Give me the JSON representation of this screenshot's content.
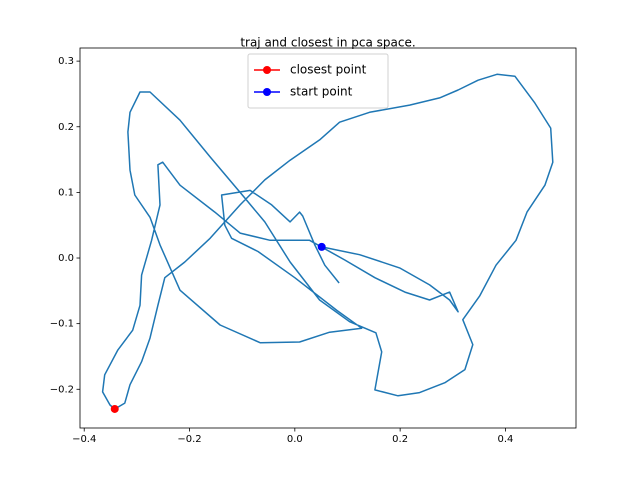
{
  "chart_data": {
    "type": "line",
    "title": "traj and closest in pca space.",
    "xlim": [
      -0.408,
      0.534
    ],
    "ylim": [
      -0.259,
      0.32
    ],
    "xticks": [
      {
        "value": -0.4,
        "label": "−0.4"
      },
      {
        "value": -0.2,
        "label": "−0.2"
      },
      {
        "value": 0,
        "label": "0.0"
      },
      0.2,
      0.4
    ],
    "yticks": [
      {
        "value": -0.2,
        "label": "−0.2"
      },
      {
        "value": -0.1,
        "label": "−0.1"
      },
      {
        "value": 0,
        "label": "0.0"
      },
      0.1,
      0.2,
      0.3
    ],
    "grid": false,
    "legend": "upper center",
    "series": [
      {
        "color": "#1f77b4",
        "x": [
          0.051,
          0.123,
          0.199,
          0.256,
          0.294,
          0.31,
          0.294,
          0.256,
          0.209,
          0.152,
          0.095,
          0.028,
          -0.047,
          -0.104,
          -0.152,
          -0.218,
          -0.251,
          -0.26,
          -0.256,
          -0.272,
          -0.291,
          -0.294,
          -0.308,
          -0.336,
          -0.361,
          -0.365,
          -0.351,
          -0.342,
          -0.323,
          -0.313,
          -0.291,
          -0.275,
          -0.26,
          -0.247,
          -0.209,
          -0.161,
          -0.104,
          -0.057,
          -0.009,
          0.047,
          0.085,
          0.142,
          0.218,
          0.275,
          0.31,
          0.348,
          0.384,
          0.418,
          0.456,
          0.486,
          0.49,
          0.475,
          0.441,
          0.42,
          0.382,
          0.351,
          0.319,
          0.338,
          0.323,
          0.285,
          0.237,
          0.196,
          0.152,
          0.165,
          0.154,
          0.104,
          0.047,
          -0.009,
          -0.057,
          -0.104,
          -0.161,
          -0.218,
          -0.275,
          -0.294,
          -0.313,
          -0.317,
          -0.313,
          -0.304,
          -0.275,
          -0.256,
          -0.218,
          -0.142,
          -0.066,
          0.009,
          0.066,
          0.127,
          0.08,
          0.0,
          -0.07,
          -0.12,
          -0.133,
          -0.139,
          -0.085,
          -0.044,
          -0.009,
          0.009,
          0.015,
          0.038,
          0.057,
          0.084
        ],
        "y": [
          0.017,
          0.005,
          -0.015,
          -0.041,
          -0.064,
          -0.082,
          -0.052,
          -0.064,
          -0.052,
          -0.03,
          -0.003,
          0.027,
          0.027,
          0.038,
          0.07,
          0.111,
          0.146,
          0.142,
          0.081,
          0.027,
          -0.026,
          -0.072,
          -0.11,
          -0.14,
          -0.178,
          -0.204,
          -0.224,
          -0.23,
          -0.221,
          -0.193,
          -0.158,
          -0.122,
          -0.072,
          -0.03,
          -0.006,
          0.03,
          0.081,
          0.119,
          0.149,
          0.18,
          0.207,
          0.222,
          0.233,
          0.244,
          0.256,
          0.271,
          0.28,
          0.277,
          0.236,
          0.198,
          0.146,
          0.111,
          0.07,
          0.027,
          -0.011,
          -0.058,
          -0.094,
          -0.132,
          -0.17,
          -0.19,
          -0.205,
          -0.21,
          -0.201,
          -0.143,
          -0.114,
          -0.097,
          -0.064,
          -0.006,
          0.055,
          0.1,
          0.154,
          0.21,
          0.253,
          0.253,
          0.222,
          0.192,
          0.134,
          0.096,
          0.062,
          0.02,
          -0.049,
          -0.102,
          -0.129,
          -0.128,
          -0.113,
          -0.107,
          -0.08,
          -0.03,
          0.01,
          0.03,
          0.05,
          0.096,
          0.103,
          0.081,
          0.055,
          0.07,
          0.064,
          0.02,
          -0.011,
          -0.038
        ]
      },
      {
        "name": "closest point",
        "color": "red",
        "marker": "o",
        "x": [
          -0.342
        ],
        "y": [
          -0.23
        ]
      },
      {
        "name": "start point",
        "color": "blue",
        "marker": "o",
        "x": [
          0.051
        ],
        "y": [
          0.017
        ]
      }
    ]
  }
}
